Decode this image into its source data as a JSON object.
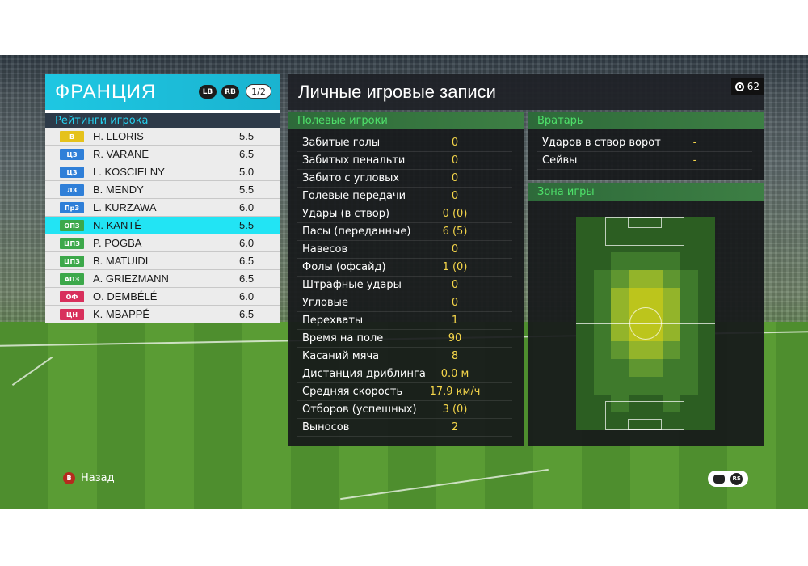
{
  "team": {
    "name": "ФРАНЦИЯ",
    "lb_label": "LB",
    "rb_label": "RB",
    "page": "1/2",
    "ratings_header": "Рейтинги игрока",
    "players": [
      {
        "pos": "В",
        "pos_color": "#e5c21b",
        "name": "H. LLORIS",
        "rating": "5.5",
        "selected": false
      },
      {
        "pos": "ЦЗ",
        "pos_color": "#2f7fd8",
        "name": "R. VARANE",
        "rating": "6.5",
        "selected": false
      },
      {
        "pos": "ЦЗ",
        "pos_color": "#2f7fd8",
        "name": "L. KOSCIELNY",
        "rating": "5.0",
        "selected": false
      },
      {
        "pos": "ЛЗ",
        "pos_color": "#2f7fd8",
        "name": "B. MENDY",
        "rating": "5.5",
        "selected": false
      },
      {
        "pos": "ПрЗ",
        "pos_color": "#2f7fd8",
        "name": "L. KURZAWA",
        "rating": "6.0",
        "selected": false
      },
      {
        "pos": "ОПЗ",
        "pos_color": "#3ca84a",
        "name": "N. KANTÉ",
        "rating": "5.5",
        "selected": true
      },
      {
        "pos": "ЦПЗ",
        "pos_color": "#3ca84a",
        "name": "P. POGBA",
        "rating": "6.0",
        "selected": false
      },
      {
        "pos": "ЦПЗ",
        "pos_color": "#3ca84a",
        "name": "B. MATUIDI",
        "rating": "6.5",
        "selected": false
      },
      {
        "pos": "АПЗ",
        "pos_color": "#3ca84a",
        "name": "A. GRIEZMANN",
        "rating": "6.5",
        "selected": false
      },
      {
        "pos": "ОФ",
        "pos_color": "#d8305c",
        "name": "O. DEMBÉLÉ",
        "rating": "6.0",
        "selected": false
      },
      {
        "pos": "ЦН",
        "pos_color": "#d8305c",
        "name": "K. MBAPPÉ",
        "rating": "6.5",
        "selected": false
      }
    ]
  },
  "stats": {
    "title": "Личные игровые записи",
    "timer": "62",
    "field_header": "Полевые игроки",
    "field_rows": [
      {
        "label": "Забитые голы",
        "value": "0"
      },
      {
        "label": "Забитых пенальти",
        "value": "0"
      },
      {
        "label": "Забито с угловых",
        "value": "0"
      },
      {
        "label": "Голевые передачи",
        "value": "0"
      },
      {
        "label": "Удары (в створ)",
        "value": "0 (0)"
      },
      {
        "label": "Пасы (переданные)",
        "value": "6 (5)"
      },
      {
        "label": "Навесов",
        "value": "0"
      },
      {
        "label": "Фолы (офсайд)",
        "value": "1 (0)"
      },
      {
        "label": "Штрафные удары",
        "value": "0"
      },
      {
        "label": "Угловые",
        "value": "0"
      },
      {
        "label": "Перехваты",
        "value": "1"
      },
      {
        "label": "Время на поле",
        "value": "90"
      },
      {
        "label": "Касаний мяча",
        "value": "8"
      },
      {
        "label": "Дистанция дриблинга",
        "value": "0.0 м"
      },
      {
        "label": "Средняя скорость",
        "value": "17.9 км/ч"
      },
      {
        "label": "Отборов (успешных)",
        "value": "3 (0)"
      },
      {
        "label": "Выносов",
        "value": "2"
      }
    ],
    "gk_header": "Вратарь",
    "gk_rows": [
      {
        "label": "Ударов в створ ворот",
        "value": "-"
      },
      {
        "label": "Сейвы",
        "value": "-"
      }
    ],
    "zone_header": "Зона игры"
  },
  "footer": {
    "back_button": "B",
    "back_label": "Назад",
    "rs_button": "RS"
  }
}
